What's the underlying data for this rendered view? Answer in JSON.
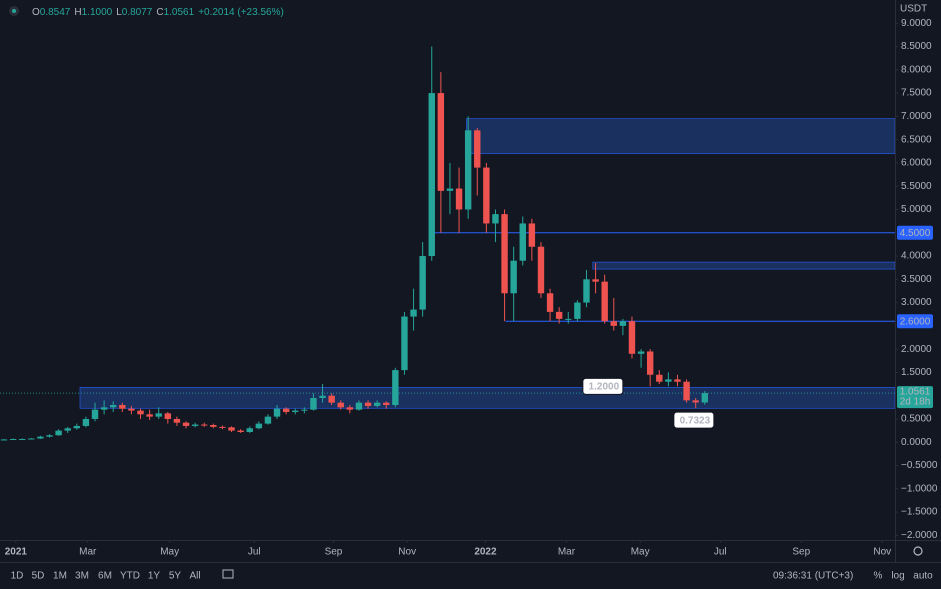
{
  "chart_data": {
    "type": "candlestick",
    "currency": "USDT",
    "legend": {
      "open_label": "O",
      "open": "0.8547",
      "high_label": "H",
      "high": "1.1000",
      "low_label": "L",
      "low": "0.8077",
      "close_label": "C",
      "close": "1.0561",
      "change": "+0.2014 (+23.56%)"
    },
    "colors": {
      "up": "#26a69a",
      "down": "#ef5350",
      "zone": "#1c3366",
      "level": "#2962ff"
    },
    "xlim": [
      -0.44,
      97.9
    ],
    "ylim": [
      -2.1,
      9.5
    ],
    "xticks": [
      {
        "value": 9.2,
        "label": "Mar"
      },
      {
        "value": 18.2,
        "label": "May"
      },
      {
        "value": 27.5,
        "label": "Jul"
      },
      {
        "value": 36.2,
        "label": "Sep"
      },
      {
        "value": 44.3,
        "label": "Nov"
      },
      {
        "value": 52.9,
        "label": "2022"
      },
      {
        "value": 61.8,
        "label": "Mar"
      },
      {
        "value": 69.9,
        "label": "May"
      },
      {
        "value": 78.7,
        "label": "Jul"
      },
      {
        "value": 87.6,
        "label": "Sep"
      },
      {
        "value": 96.5,
        "label": "Nov"
      },
      {
        "value": 1.3,
        "label": "2021"
      }
    ],
    "yticks": [
      {
        "value": 9,
        "label": "9.0000"
      },
      {
        "value": 8.5,
        "label": "8.5000"
      },
      {
        "value": 8,
        "label": "8.0000"
      },
      {
        "value": 7.5,
        "label": "7.5000"
      },
      {
        "value": 7,
        "label": "7.0000"
      },
      {
        "value": 6.5,
        "label": "6.5000"
      },
      {
        "value": 6,
        "label": "6.0000"
      },
      {
        "value": 5.5,
        "label": "5.5000"
      },
      {
        "value": 5,
        "label": "5.0000"
      },
      {
        "value": 4,
        "label": "4.0000"
      },
      {
        "value": 3.5,
        "label": "3.5000"
      },
      {
        "value": 3,
        "label": "3.0000"
      },
      {
        "value": 2,
        "label": "2.0000"
      },
      {
        "value": 1.5,
        "label": "1.5000"
      },
      {
        "value": 0.5,
        "label": "0.5000"
      },
      {
        "value": 0,
        "label": "0.0000"
      },
      {
        "value": -0.5,
        "label": "−0.5000"
      },
      {
        "value": -1,
        "label": "−1.0000"
      },
      {
        "value": -1.5,
        "label": "−1.5000"
      },
      {
        "value": -2,
        "label": "−2.0000"
      }
    ],
    "x": [
      0,
      1,
      2,
      3,
      4,
      5,
      6,
      7,
      8,
      9,
      10,
      11,
      12,
      13,
      14,
      15,
      16,
      17,
      18,
      19,
      20,
      21,
      22,
      23,
      24,
      25,
      26,
      27,
      28,
      29,
      30,
      31,
      32,
      33,
      34,
      35,
      36,
      37,
      38,
      39,
      40,
      41,
      42,
      43,
      44,
      45,
      46,
      47,
      48,
      49,
      50,
      51,
      52,
      53,
      54,
      55,
      56,
      57,
      58,
      59,
      60,
      61,
      62,
      63,
      64,
      65,
      66,
      67,
      68,
      69,
      70,
      71,
      72,
      73,
      74,
      75,
      76,
      77
    ],
    "open": [
      0.05,
      0.06,
      0.07,
      0.07,
      0.08,
      0.12,
      0.15,
      0.25,
      0.3,
      0.35,
      0.5,
      0.7,
      0.75,
      0.8,
      0.72,
      0.68,
      0.6,
      0.55,
      0.62,
      0.5,
      0.42,
      0.35,
      0.38,
      0.37,
      0.33,
      0.32,
      0.25,
      0.22,
      0.3,
      0.4,
      0.55,
      0.72,
      0.65,
      0.68,
      0.7,
      0.95,
      1.0,
      0.85,
      0.75,
      0.7,
      0.85,
      0.78,
      0.85,
      0.8,
      1.55,
      2.7,
      2.85,
      4.0,
      7.5,
      5.4,
      5.45,
      5.0,
      6.7,
      5.9,
      4.7,
      4.9,
      3.2,
      3.9,
      4.7,
      4.2,
      3.2,
      2.8,
      2.65,
      2.65,
      3.0,
      3.5,
      3.45,
      2.6,
      2.5,
      2.6,
      1.9,
      1.95,
      1.45,
      1.3,
      1.35,
      1.3,
      0.9,
      0.8547
    ],
    "high": [
      0.07,
      0.08,
      0.08,
      0.09,
      0.14,
      0.17,
      0.28,
      0.33,
      0.4,
      0.55,
      0.85,
      0.9,
      0.88,
      0.85,
      0.78,
      0.72,
      0.7,
      0.75,
      0.65,
      0.55,
      0.45,
      0.42,
      0.42,
      0.4,
      0.36,
      0.34,
      0.28,
      0.34,
      0.45,
      0.6,
      0.8,
      0.75,
      0.72,
      0.75,
      1.05,
      1.25,
      1.05,
      0.9,
      0.8,
      0.9,
      0.9,
      0.9,
      0.88,
      1.6,
      2.8,
      3.3,
      4.3,
      8.5,
      7.95,
      6.0,
      5.9,
      7.0,
      6.75,
      6.0,
      5.0,
      5.0,
      4.2,
      4.85,
      4.8,
      4.3,
      3.3,
      2.9,
      2.8,
      3.05,
      3.7,
      3.85,
      3.6,
      3.1,
      2.65,
      2.7,
      2.0,
      2.0,
      1.55,
      1.5,
      1.45,
      1.35,
      0.95,
      1.1
    ],
    "low": [
      0.04,
      0.05,
      0.06,
      0.06,
      0.07,
      0.1,
      0.14,
      0.2,
      0.27,
      0.32,
      0.45,
      0.6,
      0.65,
      0.65,
      0.6,
      0.5,
      0.48,
      0.5,
      0.4,
      0.35,
      0.3,
      0.32,
      0.33,
      0.3,
      0.28,
      0.22,
      0.2,
      0.2,
      0.28,
      0.38,
      0.5,
      0.6,
      0.6,
      0.62,
      0.68,
      0.85,
      0.8,
      0.7,
      0.62,
      0.68,
      0.72,
      0.75,
      0.72,
      0.75,
      1.45,
      2.4,
      2.7,
      3.9,
      4.5,
      4.9,
      4.5,
      4.8,
      5.3,
      4.5,
      4.3,
      2.6,
      2.6,
      3.8,
      3.9,
      3.1,
      2.6,
      2.55,
      2.55,
      2.6,
      2.9,
      3.2,
      2.55,
      2.4,
      2.3,
      1.8,
      1.6,
      1.2,
      1.25,
      1.2,
      1.2,
      0.85,
      0.7323,
      0.8077
    ],
    "close": [
      0.06,
      0.07,
      0.07,
      0.08,
      0.12,
      0.15,
      0.25,
      0.3,
      0.35,
      0.5,
      0.7,
      0.75,
      0.8,
      0.72,
      0.68,
      0.6,
      0.55,
      0.62,
      0.5,
      0.42,
      0.35,
      0.38,
      0.37,
      0.33,
      0.32,
      0.25,
      0.22,
      0.3,
      0.4,
      0.55,
      0.72,
      0.65,
      0.68,
      0.7,
      0.95,
      1.0,
      0.85,
      0.75,
      0.7,
      0.85,
      0.78,
      0.85,
      0.8,
      1.55,
      2.7,
      2.85,
      4.0,
      7.5,
      5.4,
      5.45,
      5.0,
      6.7,
      5.9,
      4.7,
      4.9,
      3.2,
      3.9,
      4.7,
      4.2,
      3.2,
      2.8,
      2.65,
      2.65,
      3.0,
      3.5,
      3.45,
      2.6,
      2.5,
      2.6,
      1.9,
      1.95,
      1.45,
      1.3,
      1.35,
      1.3,
      0.9,
      0.8547,
      1.0561
    ],
    "zones": [
      {
        "low": 6.2,
        "high": 6.95,
        "x": 50.8
      },
      {
        "low": 3.72,
        "high": 3.87,
        "x": 64.7
      },
      {
        "low": 0.73,
        "high": 1.18,
        "x": 8.35
      }
    ],
    "levels": [
      {
        "value": 4.5,
        "label": "4.5000",
        "x": 46.8
      },
      {
        "value": 2.6,
        "label": "2.6000",
        "x": 55.1
      }
    ],
    "callouts": [
      {
        "value": 1.2,
        "label": "1.2000",
        "x": 65.8,
        "above": true
      },
      {
        "value": 0.7323,
        "label": "0.7323",
        "x": 75.8,
        "above": false
      }
    ],
    "last_price": {
      "value": 1.0561,
      "label": "1.0561",
      "countdown": "2d 18h"
    }
  },
  "toolbar": {
    "ranges": [
      "1D",
      "5D",
      "1M",
      "3M",
      "6M",
      "YTD",
      "1Y",
      "5Y",
      "All"
    ],
    "clock": "09:36:31 (UTC+3)",
    "options": [
      "%",
      "log",
      "auto"
    ]
  }
}
